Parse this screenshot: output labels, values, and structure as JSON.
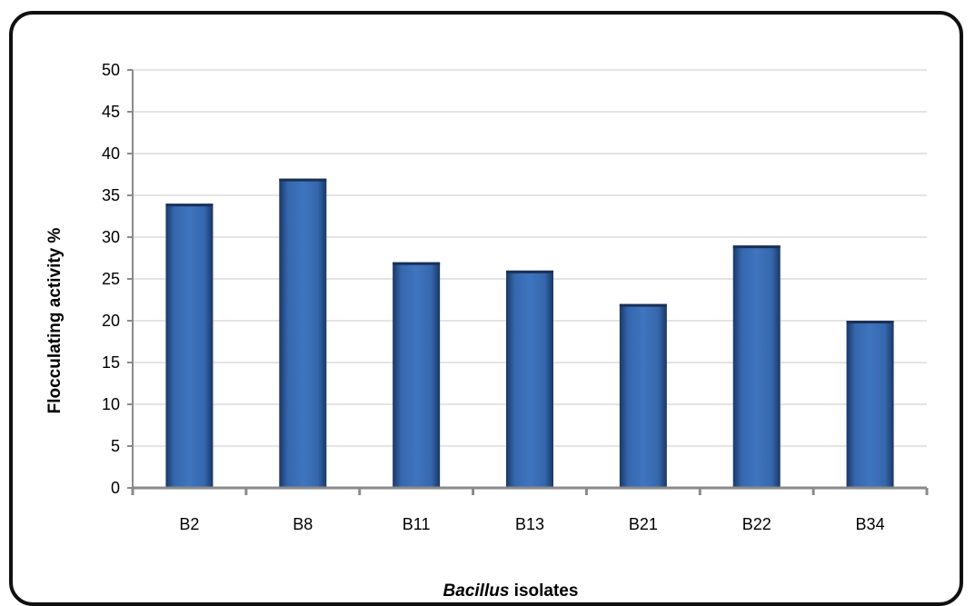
{
  "chart_data": {
    "type": "bar",
    "categories": [
      "B2",
      "B8",
      "B11",
      "B13",
      "B21",
      "B22",
      "B34"
    ],
    "values": [
      34,
      37,
      27,
      26,
      22,
      29,
      20
    ],
    "ylabel": "Flocculating activity %",
    "xlabel_italic": "Bacillus",
    "xlabel_rest": " isolates",
    "ylim": [
      0,
      50
    ],
    "ytick_step": 5,
    "grid": true,
    "bar_color": "#2f5c9f",
    "legend": "none"
  }
}
